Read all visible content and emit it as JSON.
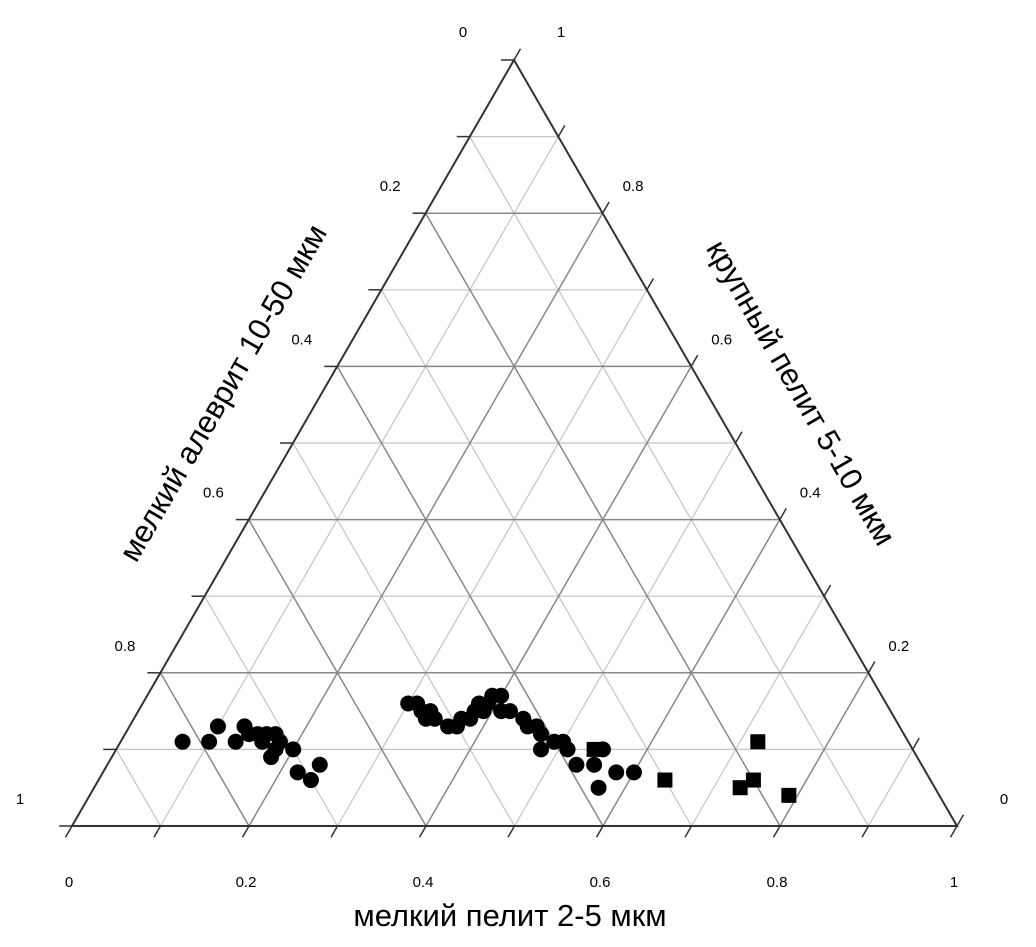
{
  "chart_data": {
    "type": "scatter",
    "subtype": "ternary",
    "title": "",
    "axes": {
      "bottom": {
        "label": "мелкий пелит 2-5 мкм",
        "ticks": [
          "0",
          "0.2",
          "0.4",
          "0.6",
          "0.8",
          "1"
        ]
      },
      "left": {
        "label": "мелкий алеврит 10-50 мкм",
        "ticks": [
          "0",
          "0.2",
          "0.4",
          "0.6",
          "0.8",
          "1"
        ]
      },
      "right": {
        "label": "крупный пелит 5-10 мкм",
        "ticks": [
          "1",
          "0.8",
          "0.6",
          "0.4",
          "0.2",
          "0"
        ]
      }
    },
    "grid": true,
    "grid_step": 0.1,
    "series": [
      {
        "marker": "circle",
        "components": [
          "fine_pelite_2_5",
          "fine_silt_10_50",
          "coarse_pelite_5_10"
        ],
        "points": [
          [
            0.07,
            0.82,
            0.11
          ],
          [
            0.1,
            0.79,
            0.11
          ],
          [
            0.1,
            0.77,
            0.13
          ],
          [
            0.13,
            0.76,
            0.11
          ],
          [
            0.13,
            0.74,
            0.13
          ],
          [
            0.14,
            0.74,
            0.12
          ],
          [
            0.15,
            0.73,
            0.12
          ],
          [
            0.16,
            0.73,
            0.11
          ],
          [
            0.16,
            0.72,
            0.12
          ],
          [
            0.17,
            0.71,
            0.12
          ],
          [
            0.18,
            0.71,
            0.11
          ],
          [
            0.18,
            0.72,
            0.1
          ],
          [
            0.18,
            0.73,
            0.09
          ],
          [
            0.2,
            0.7,
            0.1
          ],
          [
            0.22,
            0.71,
            0.07
          ],
          [
            0.24,
            0.7,
            0.06
          ],
          [
            0.24,
            0.68,
            0.08
          ],
          [
            0.3,
            0.54,
            0.16
          ],
          [
            0.31,
            0.53,
            0.16
          ],
          [
            0.32,
            0.53,
            0.15
          ],
          [
            0.33,
            0.52,
            0.15
          ],
          [
            0.33,
            0.53,
            0.14
          ],
          [
            0.34,
            0.52,
            0.14
          ],
          [
            0.36,
            0.51,
            0.13
          ],
          [
            0.37,
            0.5,
            0.13
          ],
          [
            0.37,
            0.49,
            0.14
          ],
          [
            0.38,
            0.47,
            0.15
          ],
          [
            0.38,
            0.46,
            0.16
          ],
          [
            0.38,
            0.48,
            0.14
          ],
          [
            0.39,
            0.46,
            0.15
          ],
          [
            0.39,
            0.45,
            0.16
          ],
          [
            0.39,
            0.44,
            0.17
          ],
          [
            0.41,
            0.44,
            0.15
          ],
          [
            0.4,
            0.43,
            0.17
          ],
          [
            0.42,
            0.43,
            0.15
          ],
          [
            0.44,
            0.42,
            0.14
          ],
          [
            0.45,
            0.42,
            0.13
          ],
          [
            0.46,
            0.41,
            0.13
          ],
          [
            0.47,
            0.41,
            0.12
          ],
          [
            0.48,
            0.42,
            0.1
          ],
          [
            0.49,
            0.4,
            0.11
          ],
          [
            0.5,
            0.39,
            0.11
          ],
          [
            0.51,
            0.39,
            0.1
          ],
          [
            0.53,
            0.39,
            0.08
          ],
          [
            0.55,
            0.37,
            0.08
          ],
          [
            0.55,
            0.35,
            0.1
          ],
          [
            0.57,
            0.38,
            0.05
          ],
          [
            0.58,
            0.35,
            0.07
          ],
          [
            0.6,
            0.33,
            0.07
          ]
        ]
      },
      {
        "marker": "square",
        "components": [
          "fine_pelite_2_5",
          "fine_silt_10_50",
          "coarse_pelite_5_10"
        ],
        "points": [
          [
            0.54,
            0.36,
            0.1
          ],
          [
            0.64,
            0.3,
            0.06
          ],
          [
            0.73,
            0.22,
            0.05
          ],
          [
            0.74,
            0.2,
            0.06
          ],
          [
            0.79,
            0.17,
            0.04
          ],
          [
            0.72,
            0.17,
            0.11
          ]
        ]
      }
    ]
  }
}
